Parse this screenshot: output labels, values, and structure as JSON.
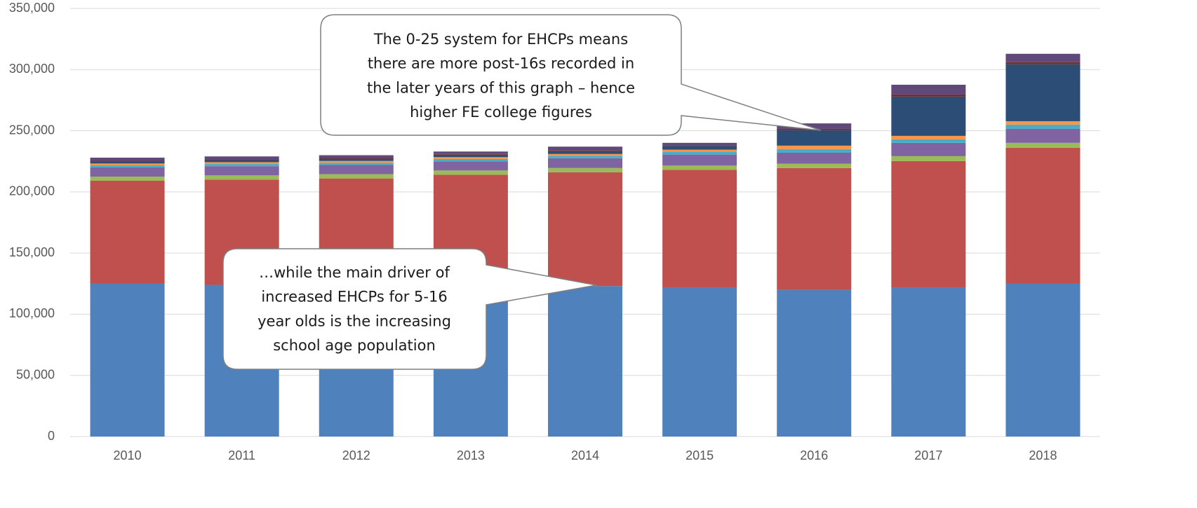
{
  "chart_data": {
    "type": "stacked_bar",
    "categories": [
      "2010",
      "2011",
      "2012",
      "2013",
      "2014",
      "2015",
      "2016",
      "2017",
      "2018"
    ],
    "series": [
      {
        "color": "#4f81bd",
        "values": [
          124900,
          124000,
          123000,
          123000,
          123000,
          121500,
          119800,
          121500,
          124900
        ]
      },
      {
        "color": "#c0504d",
        "values": [
          84200,
          86000,
          88000,
          91000,
          93000,
          96500,
          99700,
          103700,
          111200
        ]
      },
      {
        "color": "#9bbb59",
        "values": [
          3400,
          3500,
          3500,
          3500,
          3500,
          3500,
          3500,
          4000,
          4000
        ]
      },
      {
        "color": "#8064a2",
        "values": [
          7500,
          7500,
          7500,
          7500,
          8000,
          9000,
          9000,
          10900,
          11400
        ]
      },
      {
        "color": "#4bacc6",
        "values": [
          1700,
          1800,
          1800,
          1900,
          2000,
          2500,
          3000,
          2900,
          3500
        ]
      },
      {
        "color": "#f79646",
        "values": [
          1500,
          1500,
          1500,
          1500,
          1500,
          1500,
          2800,
          2800,
          2800
        ]
      },
      {
        "color": "#2c4d75",
        "values": [
          1600,
          1700,
          1800,
          2000,
          2500,
          3000,
          12600,
          32100,
          46500
        ]
      },
      {
        "color": "#772c2a",
        "values": [
          600,
          600,
          600,
          600,
          600,
          600,
          1100,
          1700,
          1700
        ]
      },
      {
        "color": "#5f497a",
        "values": [
          2600,
          2400,
          2300,
          2000,
          2900,
          2000,
          4500,
          8000,
          6900
        ]
      }
    ],
    "ylim": [
      0,
      350000
    ],
    "yticks": [
      0,
      {
        "value": 50000,
        "label": "50,000"
      },
      {
        "value": 100000,
        "label": "100,000"
      },
      {
        "value": 150000,
        "label": "150,000"
      },
      {
        "value": 200000,
        "label": "200,000"
      },
      {
        "value": 250000,
        "label": "250,000"
      },
      {
        "value": 300000,
        "label": "300,000"
      },
      {
        "value": 350000,
        "label": "350,000"
      }
    ],
    "grid": true,
    "annotations": [
      [
        "The 0-25 system for EHCPs means",
        "there are more post-16s recorded in",
        "the later years of this graph – hence",
        "higher FE  college figures"
      ],
      [
        "…while the main driver of",
        "increased EHCPs for 5-16",
        "year olds is the increasing",
        "school age population"
      ]
    ]
  }
}
